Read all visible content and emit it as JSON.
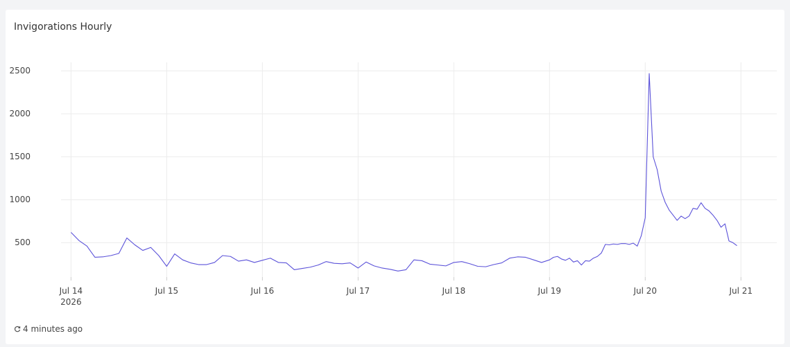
{
  "chart_data": {
    "type": "line",
    "title": "Invigorations Hourly",
    "x": [
      0,
      2,
      4,
      6,
      8,
      10,
      12,
      14,
      16,
      18,
      20,
      22,
      24,
      26,
      28,
      30,
      32,
      34,
      36,
      38,
      40,
      42,
      44,
      46,
      48,
      50,
      52,
      54,
      56,
      58,
      60,
      62,
      64,
      66,
      68,
      70,
      72,
      74,
      76,
      78,
      80,
      82,
      84,
      86,
      88,
      90,
      92,
      94,
      96,
      98,
      100,
      102,
      104,
      106,
      108,
      110,
      112,
      114,
      116,
      118,
      120,
      121,
      122,
      123,
      124,
      125,
      126,
      127,
      128,
      129,
      130,
      131,
      132,
      133,
      134,
      135,
      136,
      137,
      138,
      139,
      140,
      141,
      142,
      143,
      144,
      145,
      146,
      147,
      148,
      149,
      150,
      151,
      152,
      153,
      154,
      155,
      156,
      157,
      158,
      159,
      160,
      161,
      162,
      163,
      164,
      165,
      166,
      167
    ],
    "series": [
      {
        "name": "Invigorations",
        "color": "#5b52d9",
        "values": [
          620,
          525,
          460,
          330,
          335,
          350,
          375,
          555,
          475,
          410,
          445,
          350,
          225,
          370,
          300,
          265,
          245,
          245,
          270,
          350,
          340,
          285,
          300,
          270,
          295,
          320,
          270,
          265,
          185,
          200,
          215,
          240,
          280,
          260,
          255,
          265,
          205,
          275,
          230,
          205,
          190,
          170,
          185,
          300,
          290,
          250,
          240,
          230,
          270,
          280,
          255,
          225,
          220,
          245,
          265,
          320,
          335,
          330,
          300,
          270,
          300,
          330,
          340,
          310,
          295,
          320,
          275,
          290,
          240,
          290,
          285,
          320,
          340,
          380,
          480,
          475,
          485,
          480,
          490,
          490,
          480,
          495,
          460,
          580,
          790,
          2470,
          1500,
          1350,
          1100,
          970,
          880,
          820,
          760,
          810,
          780,
          810,
          900,
          890,
          965,
          900,
          870,
          820,
          760,
          680,
          720,
          520,
          500,
          465
        ]
      }
    ],
    "xlim": [
      -2.5,
      177
    ],
    "xticks": [
      {
        "value": 0,
        "label": "Jul 14\n2026"
      },
      {
        "value": 24,
        "label": "Jul 15"
      },
      {
        "value": 48,
        "label": "Jul 16"
      },
      {
        "value": 72,
        "label": "Jul 17"
      },
      {
        "value": 96,
        "label": "Jul 18"
      },
      {
        "value": 120,
        "label": "Jul 19"
      },
      {
        "value": 144,
        "label": "Jul 20"
      },
      {
        "value": 168,
        "label": "Jul 21"
      }
    ],
    "ylim": [
      100,
      2600
    ],
    "yticks": [
      500,
      1000,
      1500,
      2000,
      2500
    ],
    "grid": true
  },
  "footer": {
    "updated": "4 minutes ago"
  }
}
